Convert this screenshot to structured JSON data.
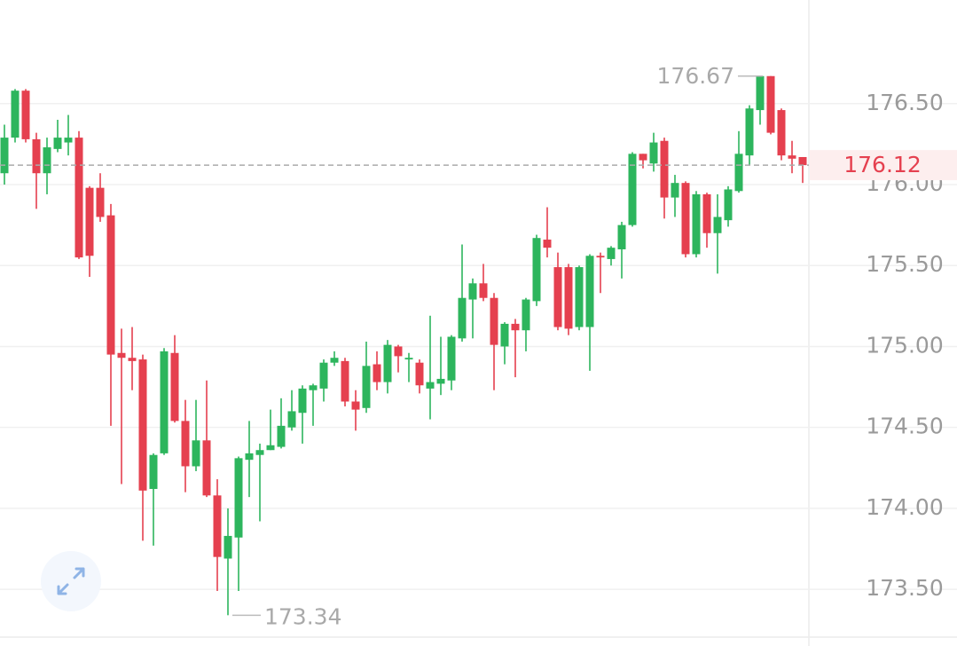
{
  "chart_data": {
    "type": "candlestick",
    "up_color": "#2db55d",
    "down_color": "#e5404f",
    "ylim": [
      173.15,
      177.14
    ],
    "yticks": [
      {
        "value": 173.5,
        "label": "173.50"
      },
      {
        "value": 174,
        "label": "174.00"
      },
      {
        "value": 174.5,
        "label": "174.50"
      },
      {
        "value": 175,
        "label": "175.00"
      },
      {
        "value": 175.5,
        "label": "175.50"
      },
      {
        "value": 176,
        "label": "176.00"
      },
      {
        "value": 176.5,
        "label": "176.50"
      }
    ],
    "grid": true,
    "high_marker": 176.67,
    "low_marker": 173.34,
    "last_price": 176.12,
    "open": [
      176.07,
      176.29,
      176.58,
      176.28,
      176.07,
      176.22,
      176.26,
      176.29,
      175.98,
      175.98,
      175.81,
      174.96,
      174.93,
      174.92,
      174.12,
      174.34,
      174.96,
      174.54,
      174.26,
      174.42,
      174.08,
      173.69,
      173.82,
      174.3,
      174.33,
      174.36,
      174.38,
      174.5,
      174.59,
      174.73,
      174.74,
      174.9,
      174.91,
      174.66,
      174.62,
      174.89,
      174.78,
      175.0,
      174.92,
      174.9,
      174.74,
      174.77,
      174.79,
      175.05,
      175.29,
      175.39,
      175.3,
      175.0,
      175.14,
      175.1,
      175.28,
      175.66,
      175.49,
      175.49,
      175.12,
      175.12,
      175.56,
      175.54,
      175.6,
      175.75,
      176.19,
      176.13,
      176.27,
      175.92,
      176.01,
      175.57,
      175.94,
      175.7,
      175.78,
      175.96,
      176.18,
      176.46,
      176.67,
      176.46,
      176.18,
      176.17
    ],
    "high": [
      176.37,
      176.59,
      176.59,
      176.32,
      176.29,
      176.4,
      176.43,
      176.33,
      175.99,
      176.07,
      175.88,
      175.11,
      175.12,
      174.95,
      174.34,
      174.99,
      175.07,
      174.67,
      174.67,
      174.79,
      174.18,
      174.0,
      174.32,
      174.54,
      174.4,
      174.61,
      174.68,
      174.73,
      174.76,
      174.77,
      174.92,
      174.97,
      174.93,
      174.73,
      175.03,
      174.97,
      175.04,
      175.01,
      174.96,
      174.92,
      175.19,
      175.06,
      175.07,
      175.63,
      175.42,
      175.51,
      175.33,
      175.15,
      175.17,
      175.3,
      175.69,
      175.86,
      175.58,
      175.51,
      175.5,
      175.57,
      175.58,
      175.62,
      175.77,
      176.2,
      176.19,
      176.32,
      176.29,
      176.06,
      176.02,
      175.96,
      175.95,
      175.94,
      175.99,
      176.33,
      176.49,
      176.67,
      176.67,
      176.47,
      176.27,
      176.17
    ],
    "low": [
      176.0,
      176.26,
      176.26,
      175.85,
      175.94,
      176.2,
      176.18,
      175.54,
      175.43,
      175.77,
      174.51,
      174.15,
      174.73,
      173.8,
      173.77,
      174.33,
      174.53,
      174.1,
      174.23,
      174.07,
      173.49,
      173.34,
      173.49,
      174.07,
      173.92,
      174.36,
      174.37,
      174.48,
      174.4,
      174.51,
      174.66,
      174.88,
      174.63,
      174.48,
      174.59,
      174.73,
      174.71,
      174.84,
      174.78,
      174.71,
      174.55,
      174.7,
      174.73,
      175.03,
      175.05,
      175.28,
      174.73,
      174.89,
      174.81,
      174.97,
      175.25,
      175.55,
      175.1,
      175.07,
      175.1,
      174.85,
      175.33,
      175.5,
      175.42,
      175.74,
      176.1,
      176.08,
      175.79,
      175.8,
      175.55,
      175.55,
      175.61,
      175.45,
      175.74,
      175.95,
      176.12,
      176.37,
      176.31,
      176.15,
      176.07,
      176.01
    ],
    "close": [
      176.29,
      176.58,
      176.28,
      176.07,
      176.23,
      176.29,
      176.29,
      175.55,
      175.56,
      175.8,
      174.95,
      174.93,
      174.91,
      174.11,
      174.33,
      174.97,
      174.54,
      174.26,
      174.42,
      174.08,
      173.7,
      173.83,
      174.31,
      174.34,
      174.36,
      174.39,
      174.51,
      174.6,
      174.74,
      174.76,
      174.9,
      174.93,
      174.66,
      174.61,
      174.88,
      174.78,
      175.01,
      174.94,
      174.93,
      174.76,
      174.78,
      174.8,
      175.06,
      175.3,
      175.39,
      175.3,
      175.01,
      175.14,
      175.1,
      175.29,
      175.67,
      175.61,
      175.12,
      175.11,
      175.49,
      175.56,
      175.55,
      175.61,
      175.75,
      176.19,
      176.15,
      176.26,
      175.92,
      176.01,
      175.57,
      175.94,
      175.7,
      175.8,
      175.97,
      176.19,
      176.47,
      176.67,
      176.32,
      176.18,
      176.16,
      176.12
    ]
  }
}
